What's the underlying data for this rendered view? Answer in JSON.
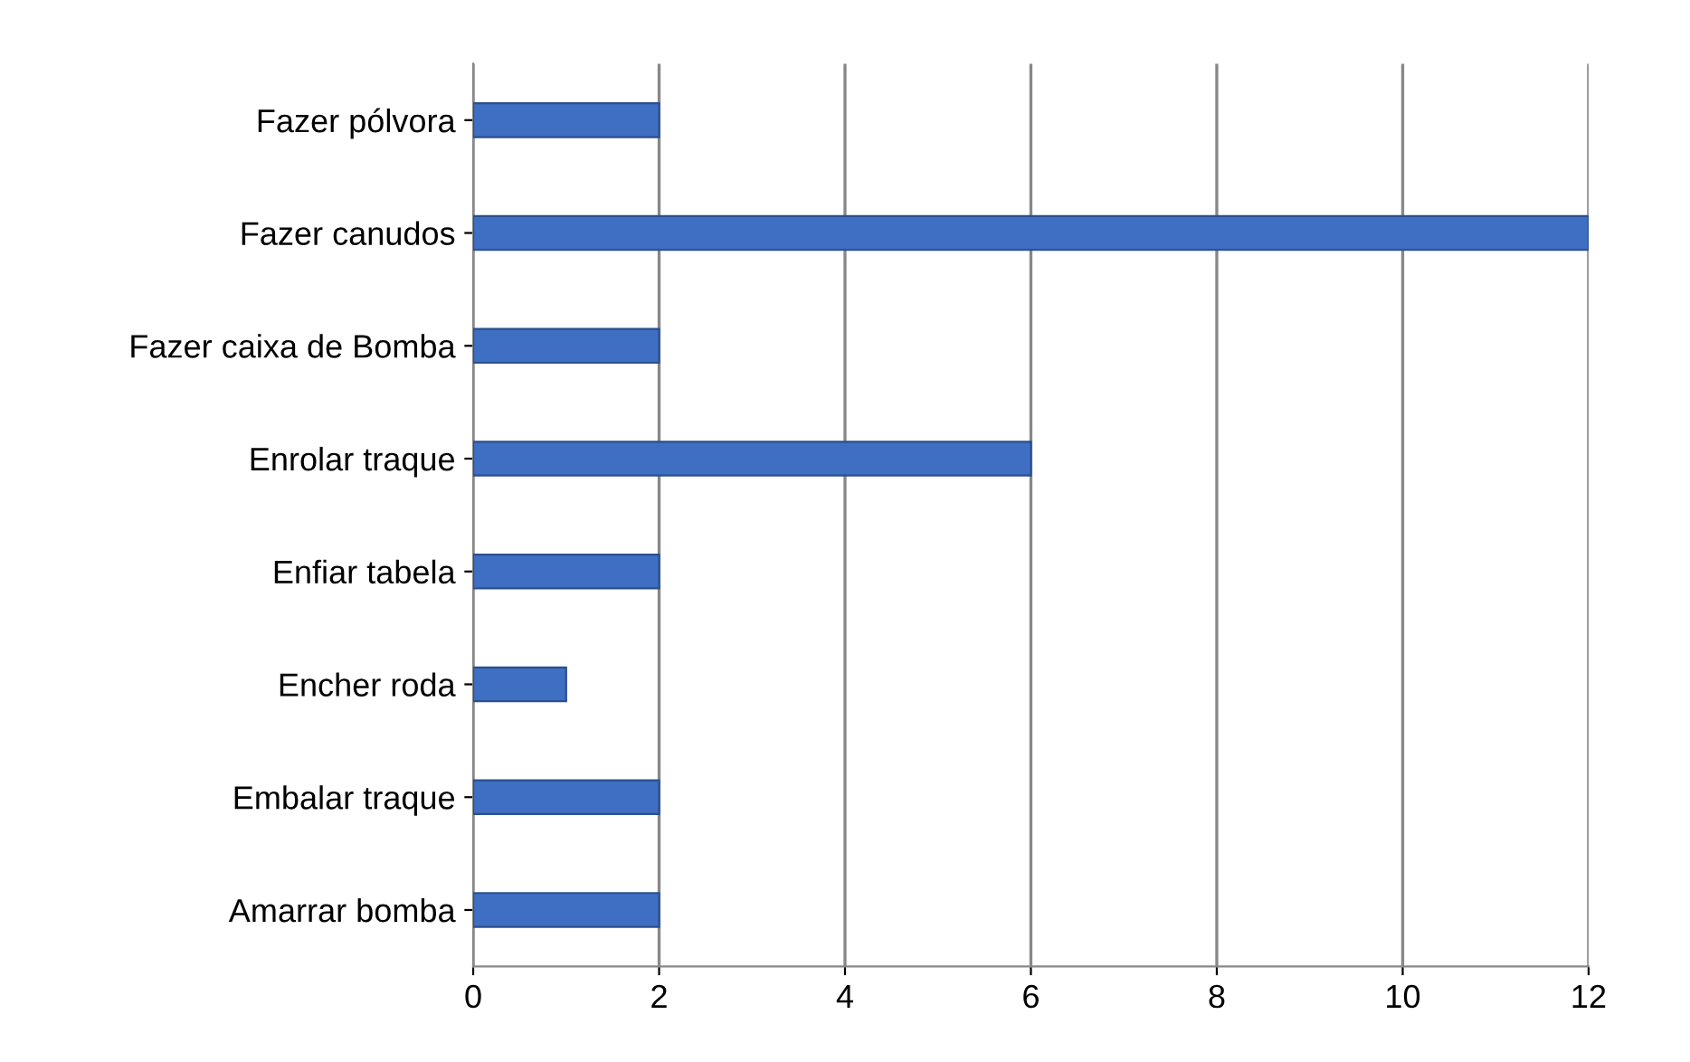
{
  "chart_data": {
    "type": "bar",
    "orientation": "horizontal",
    "categories": [
      "Fazer pólvora",
      "Fazer canudos",
      "Fazer caixa de Bomba",
      "Enrolar traque",
      "Enfiar tabela",
      "Encher roda",
      "Embalar traque",
      "Amarrar bomba"
    ],
    "values": [
      2,
      12,
      2,
      6,
      2,
      1,
      2,
      2
    ],
    "color": "#3f6fc2",
    "xlim": [
      0,
      12
    ],
    "xticks": [
      0,
      2,
      4,
      6,
      8,
      10,
      12
    ],
    "grid": "x",
    "legend": false
  }
}
